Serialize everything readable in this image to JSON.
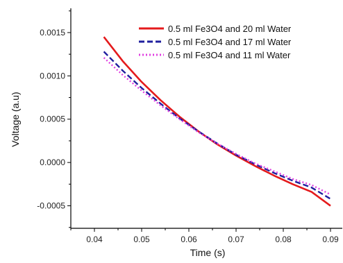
{
  "chart_data": {
    "type": "line",
    "title": "",
    "xlabel": "Time (s)",
    "ylabel": "Voltage (a.u)",
    "xlim": [
      0.035,
      0.0925
    ],
    "ylim": [
      -0.00076,
      0.00178
    ],
    "x_ticks": [
      0.04,
      0.05,
      0.06,
      0.07,
      0.08,
      0.09
    ],
    "x_tick_labels": [
      "0.04",
      "0.05",
      "0.06",
      "0.07",
      "0.08",
      "0.09"
    ],
    "y_ticks": [
      -0.0005,
      0.0,
      0.0005,
      0.001,
      0.0015
    ],
    "y_tick_labels": [
      "-0.0005",
      "0.0000",
      "0.0005",
      "0.0010",
      "0.0015"
    ],
    "grid": false,
    "legend_position": "top-right",
    "x": [
      0.042,
      0.046,
      0.05,
      0.054,
      0.058,
      0.062,
      0.066,
      0.07,
      0.074,
      0.078,
      0.082,
      0.086,
      0.09
    ],
    "series": [
      {
        "name": "0.5 ml Fe3O4 and 20 ml Water",
        "color": "#e41a1c",
        "dash": "solid",
        "values": [
          0.00145,
          0.00117,
          0.00093,
          0.00072,
          0.00053,
          0.00036,
          0.00021,
          8e-05,
          -4e-05,
          -0.00015,
          -0.00025,
          -0.00034,
          -0.0005
        ]
      },
      {
        "name": "0.5 ml Fe3O4 and 17 ml Water",
        "color": "#1f1f9e",
        "dash": "dashed",
        "values": [
          0.00128,
          0.00106,
          0.00086,
          0.00068,
          0.00051,
          0.00036,
          0.00022,
          9e-05,
          -2e-05,
          -0.00012,
          -0.00021,
          -0.00029,
          -0.00042
        ]
      },
      {
        "name": "0.5 ml Fe3O4 and 11 ml Water",
        "color": "#e040e0",
        "dash": "dotted",
        "values": [
          0.00121,
          0.00101,
          0.00083,
          0.00066,
          0.0005,
          0.00035,
          0.00022,
          0.0001,
          -1e-05,
          -0.0001,
          -0.00019,
          -0.00026,
          -0.00037
        ]
      }
    ]
  }
}
